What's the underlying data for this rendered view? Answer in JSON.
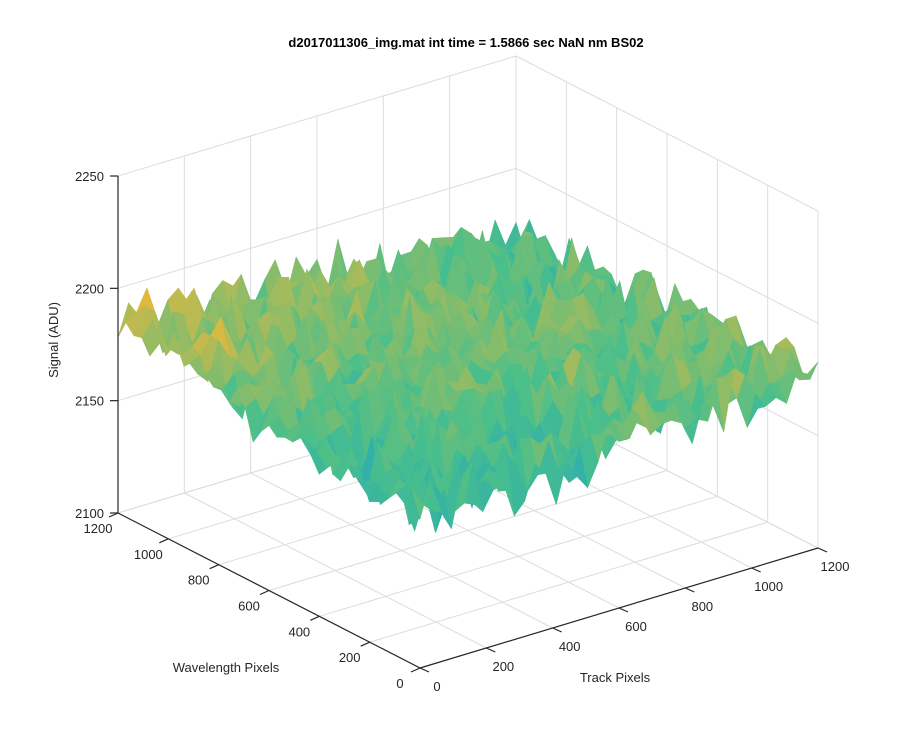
{
  "chart_data": {
    "type": "surface",
    "title": "d2017011306_img.mat int time = 1.5866 sec  NaN nm BS02",
    "xlabel": "Track Pixels",
    "ylabel": "Wavelength Pixels",
    "zlabel": "Signal (ADU)",
    "xlim": [
      0,
      1200
    ],
    "ylim": [
      0,
      1200
    ],
    "zlim": [
      2100,
      2250
    ],
    "xticks": [
      "0",
      "200",
      "400",
      "600",
      "800",
      "1000",
      "1200"
    ],
    "yticks": [
      "0",
      "200",
      "400",
      "600",
      "800",
      "1000",
      "1200"
    ],
    "zticks": [
      "2100",
      "2150",
      "2200",
      "2250"
    ],
    "grid": true,
    "view": "3d-isometric",
    "approx_surface": {
      "mean_signal": 2172,
      "noise_amplitude": 22,
      "corner_values": {
        "x0_y0": 2165,
        "x1200_y0": 2180,
        "x0_y1200": 2185,
        "x1200_y1200": 2170
      }
    },
    "colors": {
      "low": "#0a9bd8",
      "mid": "#4bbf8a",
      "high": "#e6b83a"
    }
  }
}
